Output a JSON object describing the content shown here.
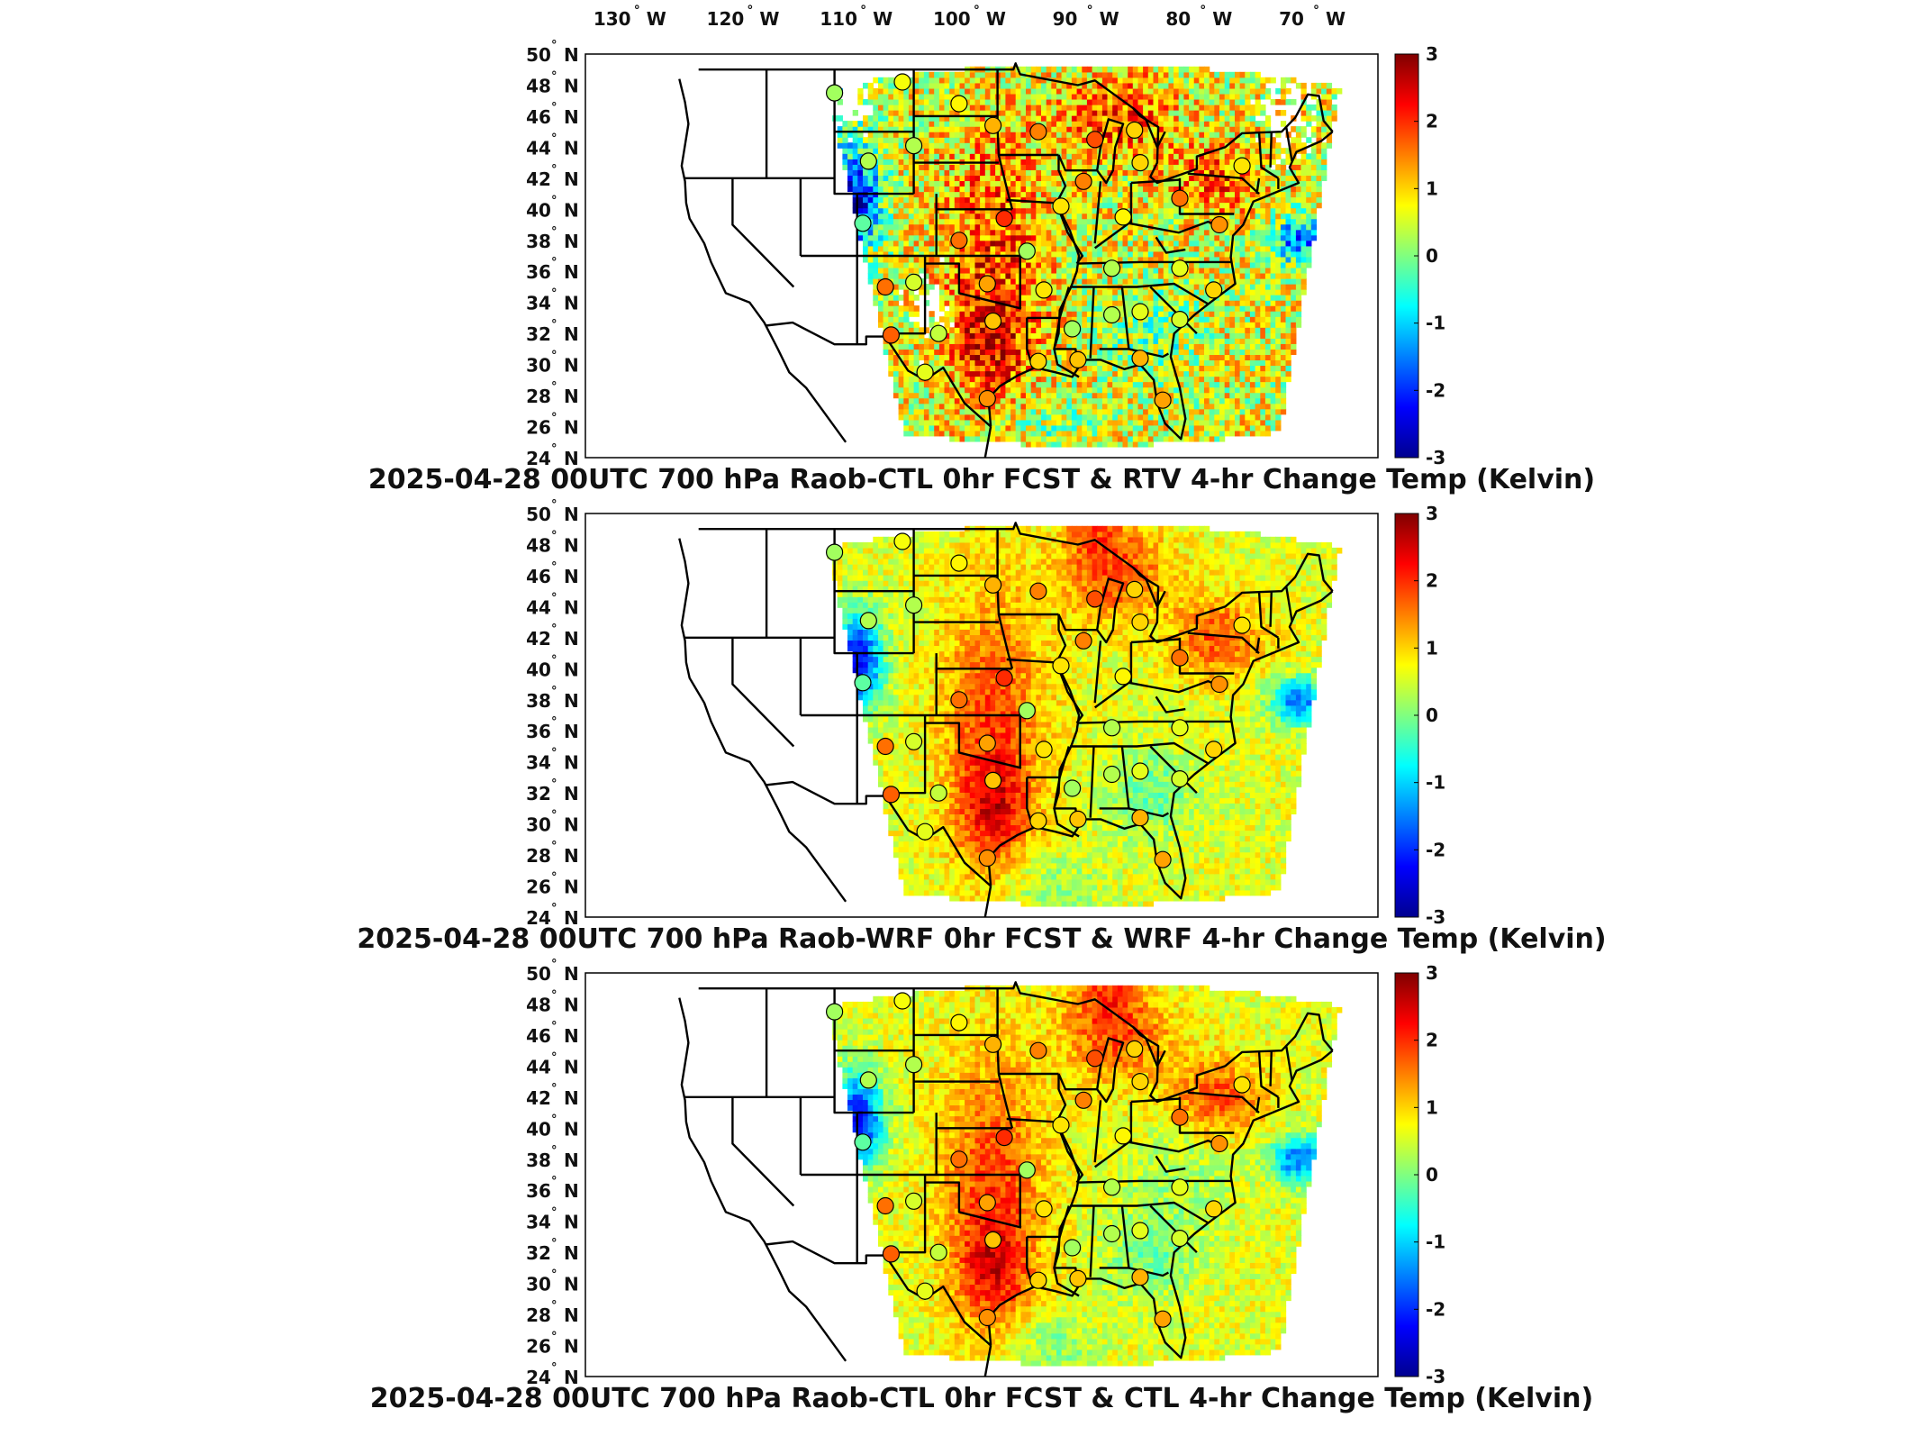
{
  "top_axis": {
    "lon_labels": [
      "130",
      "120",
      "110",
      "100",
      "90",
      "80",
      "70"
    ],
    "lon_values": [
      -130,
      -120,
      -110,
      -100,
      -90,
      -80,
      -70
    ],
    "hemisphere": "W",
    "degree_symbol": "°"
  },
  "lat_axis": {
    "labels": [
      "50",
      "48",
      "46",
      "44",
      "42",
      "40",
      "38",
      "36",
      "34",
      "32",
      "30",
      "28",
      "26",
      "24"
    ],
    "hemisphere": "N",
    "degree_symbol": "°"
  },
  "colorbar": {
    "ticks": [
      "3",
      "2",
      "1",
      "0",
      "-1",
      "-2",
      "-3"
    ],
    "range": [
      -3,
      3
    ],
    "colormap": "jet",
    "colors": [
      "#00008f",
      "#0000ff",
      "#0080ff",
      "#00ffff",
      "#80ff80",
      "#ffff00",
      "#ff8000",
      "#ff0000",
      "#800000"
    ]
  },
  "panels": [
    {
      "title": "2025-04-28 00UTC 700 hPa Raob-CTL 0hr FCST & RTV 4-hr Change Temp (Kelvin)",
      "field": "RTV"
    },
    {
      "title": "2025-04-28 00UTC 700 hPa Raob-WRF 0hr FCST & WRF 4-hr Change Temp (Kelvin)",
      "field": "WRF"
    },
    {
      "title": "2025-04-28 00UTC 700 hPa Raob-CTL 0hr FCST & CTL 4-hr Change Temp (Kelvin)",
      "field": "CTL"
    }
  ],
  "chart_data": {
    "type": "heatmap",
    "variable": "700 hPa temperature difference / 4-hr change",
    "units": "Kelvin",
    "lat_range": [
      24,
      50
    ],
    "lon_range": [
      -133,
      -63
    ],
    "color_range": [
      -3,
      3
    ],
    "raob_stations": [
      {
        "lon": -111,
        "lat": 47.5,
        "value": 0.2
      },
      {
        "lon": -105,
        "lat": 48.2,
        "value": 0.7
      },
      {
        "lon": -100,
        "lat": 46.8,
        "value": 0.8
      },
      {
        "lon": -104,
        "lat": 44.1,
        "value": 0.3
      },
      {
        "lon": -97,
        "lat": 45.4,
        "value": 1.2
      },
      {
        "lon": -93,
        "lat": 45.0,
        "value": 1.5
      },
      {
        "lon": -88,
        "lat": 44.5,
        "value": 1.8
      },
      {
        "lon": -84.5,
        "lat": 45.1,
        "value": 1.0
      },
      {
        "lon": -84,
        "lat": 43.0,
        "value": 1.0
      },
      {
        "lon": -89,
        "lat": 41.8,
        "value": 1.5
      },
      {
        "lon": -91,
        "lat": 40.2,
        "value": 0.9
      },
      {
        "lon": -85.5,
        "lat": 39.5,
        "value": 0.8
      },
      {
        "lon": -80.5,
        "lat": 40.7,
        "value": 1.6
      },
      {
        "lon": -75,
        "lat": 42.8,
        "value": 0.9
      },
      {
        "lon": -77,
        "lat": 39.0,
        "value": 1.4
      },
      {
        "lon": -96,
        "lat": 39.4,
        "value": 2.0
      },
      {
        "lon": -100,
        "lat": 38.0,
        "value": 1.6
      },
      {
        "lon": -108.5,
        "lat": 39.1,
        "value": -0.2
      },
      {
        "lon": -108,
        "lat": 43.1,
        "value": 0.3
      },
      {
        "lon": -106.5,
        "lat": 35.0,
        "value": 1.6
      },
      {
        "lon": -104,
        "lat": 35.3,
        "value": 0.5
      },
      {
        "lon": -97.5,
        "lat": 35.2,
        "value": 1.3
      },
      {
        "lon": -92.5,
        "lat": 34.8,
        "value": 0.9
      },
      {
        "lon": -94,
        "lat": 37.3,
        "value": 0.2
      },
      {
        "lon": -97,
        "lat": 32.8,
        "value": 1.1
      },
      {
        "lon": -101.8,
        "lat": 32.0,
        "value": 0.4
      },
      {
        "lon": -106,
        "lat": 31.9,
        "value": 1.7
      },
      {
        "lon": -103,
        "lat": 29.5,
        "value": 0.6
      },
      {
        "lon": -97.5,
        "lat": 27.8,
        "value": 1.4
      },
      {
        "lon": -93,
        "lat": 30.2,
        "value": 1.0
      },
      {
        "lon": -90,
        "lat": 32.3,
        "value": 0.2
      },
      {
        "lon": -86.5,
        "lat": 33.2,
        "value": 0.3
      },
      {
        "lon": -84,
        "lat": 33.4,
        "value": 0.6
      },
      {
        "lon": -80.5,
        "lat": 32.9,
        "value": 0.5
      },
      {
        "lon": -86.5,
        "lat": 36.2,
        "value": 0.3
      },
      {
        "lon": -80.5,
        "lat": 36.2,
        "value": 0.6
      },
      {
        "lon": -77.5,
        "lat": 34.8,
        "value": 1.0
      },
      {
        "lon": -84,
        "lat": 30.4,
        "value": 1.2
      },
      {
        "lon": -82,
        "lat": 27.7,
        "value": 1.3
      },
      {
        "lon": -89.5,
        "lat": 30.3,
        "value": 1.1
      }
    ]
  }
}
